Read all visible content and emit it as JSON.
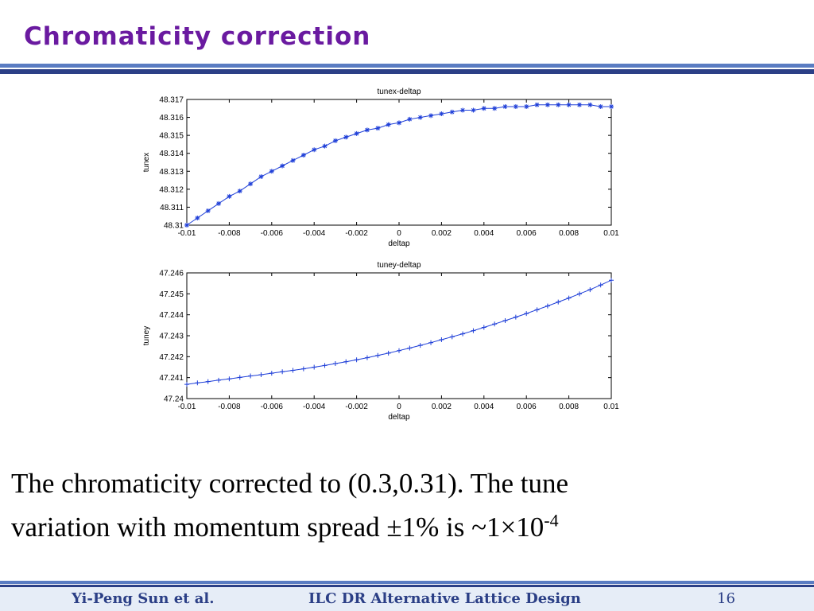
{
  "slide": {
    "title": "Chromaticity correction",
    "body_line1": "The chromaticity corrected to (0.3,0.31). The tune",
    "body_line2_prefix": "variation with momentum spread ±1% is ~1×10",
    "body_line2_exponent": "-4",
    "footer_author": "Yi-Peng Sun et al.",
    "footer_title": "ILC DR Alternative Lattice Design",
    "footer_page": "16"
  },
  "colors": {
    "title": "#6a1aa0",
    "series": "#1f3fd8",
    "rule": "#2b3f86"
  },
  "chart_data": [
    {
      "type": "line",
      "title": "tunex-deltap",
      "xlabel": "deltap",
      "ylabel": "tunex",
      "marker": "asterisk",
      "xlim": [
        -0.01,
        0.01
      ],
      "ylim": [
        48.31,
        48.317
      ],
      "xticks": [
        "-0.01",
        "-0.008",
        "-0.006",
        "-0.004",
        "-0.002",
        "0",
        "0.002",
        "0.004",
        "0.006",
        "0.008",
        "0.01"
      ],
      "yticks": [
        "48.31",
        "48.311",
        "48.312",
        "48.313",
        "48.314",
        "48.315",
        "48.316",
        "48.317"
      ],
      "grid": false,
      "x": [
        -0.01,
        -0.0095,
        -0.009,
        -0.0085,
        -0.008,
        -0.0075,
        -0.007,
        -0.0065,
        -0.006,
        -0.0055,
        -0.005,
        -0.0045,
        -0.004,
        -0.0035,
        -0.003,
        -0.0025,
        -0.002,
        -0.0015,
        -0.001,
        -0.0005,
        0,
        0.0005,
        0.001,
        0.0015,
        0.002,
        0.0025,
        0.003,
        0.0035,
        0.004,
        0.0045,
        0.005,
        0.0055,
        0.006,
        0.0065,
        0.007,
        0.0075,
        0.008,
        0.0085,
        0.009,
        0.0095,
        0.01
      ],
      "y": [
        48.31,
        48.3104,
        48.3108,
        48.3112,
        48.3116,
        48.3119,
        48.3123,
        48.3127,
        48.313,
        48.3133,
        48.3136,
        48.3139,
        48.3142,
        48.3144,
        48.3147,
        48.3149,
        48.3151,
        48.3153,
        48.3154,
        48.3156,
        48.3157,
        48.3159,
        48.316,
        48.3161,
        48.3162,
        48.3163,
        48.3164,
        48.3164,
        48.3165,
        48.3165,
        48.3166,
        48.3166,
        48.3166,
        48.3167,
        48.3167,
        48.3167,
        48.3167,
        48.3167,
        48.3167,
        48.3166,
        48.3166
      ]
    },
    {
      "type": "line",
      "title": "tuney-deltap",
      "xlabel": "deltap",
      "ylabel": "tuney",
      "marker": "plus",
      "xlim": [
        -0.01,
        0.01
      ],
      "ylim": [
        47.24,
        47.246
      ],
      "xticks": [
        "-0.01",
        "-0.008",
        "-0.006",
        "-0.004",
        "-0.002",
        "0",
        "0.002",
        "0.004",
        "0.006",
        "0.008",
        "0.01"
      ],
      "yticks": [
        "47.24",
        "47.241",
        "47.242",
        "47.243",
        "47.244",
        "47.245",
        "47.246"
      ],
      "grid": false,
      "x": [
        -0.01,
        -0.0095,
        -0.009,
        -0.0085,
        -0.008,
        -0.0075,
        -0.007,
        -0.0065,
        -0.006,
        -0.0055,
        -0.005,
        -0.0045,
        -0.004,
        -0.0035,
        -0.003,
        -0.0025,
        -0.002,
        -0.0015,
        -0.001,
        -0.0005,
        0,
        0.0005,
        0.001,
        0.0015,
        0.002,
        0.0025,
        0.003,
        0.0035,
        0.004,
        0.0045,
        0.005,
        0.0055,
        0.006,
        0.0065,
        0.007,
        0.0075,
        0.008,
        0.0085,
        0.009,
        0.0095,
        0.01
      ],
      "y": [
        47.24068,
        47.24075,
        47.24081,
        47.24088,
        47.24094,
        47.24101,
        47.24108,
        47.24114,
        47.24121,
        47.24128,
        47.24135,
        47.24142,
        47.2415,
        47.24158,
        47.24167,
        47.24176,
        47.24185,
        47.24195,
        47.24206,
        47.24217,
        47.24229,
        47.24241,
        47.24254,
        47.24267,
        47.24281,
        47.24295,
        47.24309,
        47.24324,
        47.2434,
        47.24356,
        47.24372,
        47.24389,
        47.24406,
        47.24424,
        47.24442,
        47.24461,
        47.2448,
        47.245,
        47.2452,
        47.24542,
        47.24565
      ]
    }
  ]
}
